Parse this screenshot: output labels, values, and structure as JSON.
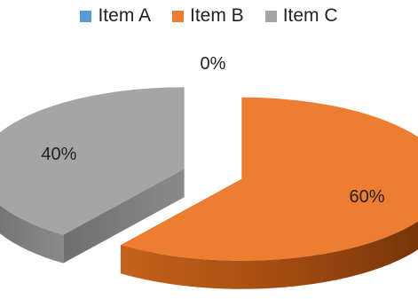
{
  "chart_data": {
    "type": "pie",
    "style": "3d exploded",
    "categories": [
      "Item A",
      "Item B",
      "Item C"
    ],
    "values": [
      0,
      60,
      40
    ],
    "data_labels": [
      "0%",
      "60%",
      "40%"
    ],
    "colors": [
      "#5b9bd5",
      "#ed7d31",
      "#a5a5a5"
    ],
    "legend_position": "top"
  }
}
